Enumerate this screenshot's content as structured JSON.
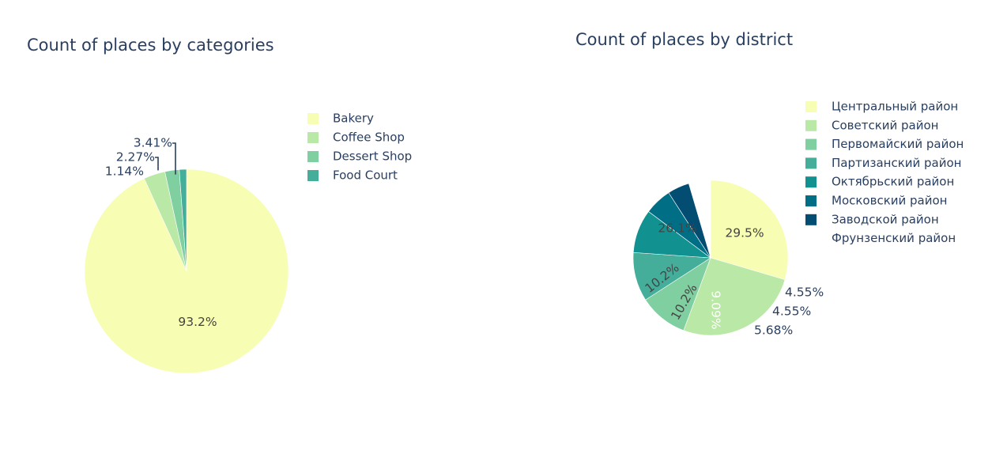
{
  "chart_data": [
    {
      "type": "pie",
      "title": "Count of places by categories",
      "categories": [
        "Bakery",
        "Coffee Shop",
        "Dessert Shop",
        "Food Court"
      ],
      "values": [
        93.2,
        3.41,
        2.27,
        1.14
      ],
      "labels": [
        "93.2%",
        "3.41%",
        "2.27%",
        "1.14%"
      ],
      "colors": [
        "#f7fdb2",
        "#bae8a6",
        "#7fcfa0",
        "#45ae9b"
      ],
      "legend_position": "right"
    },
    {
      "type": "pie",
      "title": "Count of places by district",
      "categories": [
        "Центральный район",
        "Советский район",
        "Первомайский район",
        "Партизанский район",
        "Октябрьский район",
        "Московский район",
        "Заводской район",
        "Фрунзенский район"
      ],
      "values": [
        29.5,
        26.1,
        10.2,
        10.2,
        9.09,
        5.68,
        4.55,
        4.55
      ],
      "labels": [
        "29.5%",
        "26.1%",
        "10.2%",
        "10.2%",
        "9.09%",
        "5.68%",
        "4.55%",
        "4.55%"
      ],
      "colors": [
        "#f7fdb2",
        "#bae8a6",
        "#7fcfa0",
        "#45ae9b",
        "#11918f",
        "#006f85",
        "#034d72",
        "#ffffff"
      ],
      "pull": [
        0,
        0,
        0,
        0,
        0,
        0,
        0,
        0.12
      ],
      "legend_position": "right"
    }
  ]
}
